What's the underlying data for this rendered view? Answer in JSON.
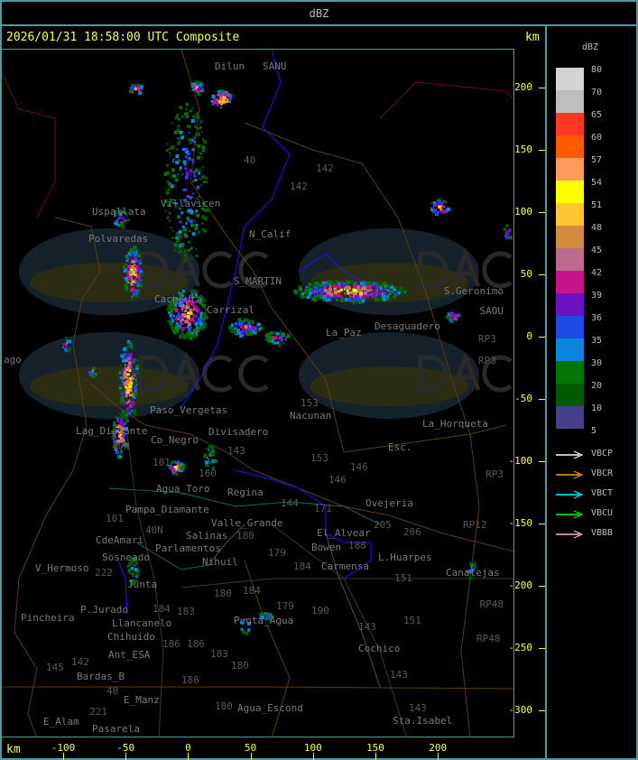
{
  "header": {
    "title": "dBZ"
  },
  "panel": {
    "title": "2026/01/31 18:58:00 UTC Composite",
    "unit_top": "km",
    "unit_bottom": "km"
  },
  "axes": {
    "y_ticks": [
      "200",
      "150",
      "100",
      "50",
      "0",
      "-50",
      "-100",
      "-150",
      "-200",
      "-250",
      "-300"
    ],
    "x_ticks": [
      "-100",
      "-50",
      "0",
      "50",
      "100",
      "150",
      "200"
    ]
  },
  "legend": {
    "unit": "dBZ",
    "levels": [
      {
        "label": "80",
        "color": "#d4d4d4"
      },
      {
        "label": "70",
        "color": "#bdbdbd"
      },
      {
        "label": "65",
        "color": "#ff3820"
      },
      {
        "label": "60",
        "color": "#ff5a00"
      },
      {
        "label": "57",
        "color": "#ff9a5a"
      },
      {
        "label": "54",
        "color": "#ffff00"
      },
      {
        "label": "51",
        "color": "#fcc42e"
      },
      {
        "label": "48",
        "color": "#d28a3c"
      },
      {
        "label": "45",
        "color": "#be6a8c"
      },
      {
        "label": "42",
        "color": "#c8128c"
      },
      {
        "label": "39",
        "color": "#6e10c4"
      },
      {
        "label": "36",
        "color": "#1e4ae6"
      },
      {
        "label": "35",
        "color": "#0a86dc"
      },
      {
        "label": "30",
        "color": "#007800"
      },
      {
        "label": "20",
        "color": "#005a00"
      },
      {
        "label": "10",
        "color": "#46408a"
      },
      {
        "label": "5",
        "color": ""
      }
    ],
    "radars": [
      {
        "label": "VBCP",
        "color": "#ffffff"
      },
      {
        "label": "VBCR",
        "color": "#ff9a00"
      },
      {
        "label": "VBCT",
        "color": "#00ffff"
      },
      {
        "label": "VBCU",
        "color": "#00ff00"
      },
      {
        "label": "VBBB",
        "color": "#ffb6c1"
      }
    ]
  },
  "map": {
    "watermark": {
      "logo": "DACC",
      "line1": "Dirección de Agricultura",
      "line2": "y Contingencias Climáticas",
      "url": "http://www.contingencias.mendoza.gov.ar"
    },
    "labels": [
      "Dilun",
      "SANU",
      "Villavicen",
      "Uspallata",
      "Polvaredas",
      "N_Calif",
      "S_MARTIN",
      "Carrizal",
      "Cacheuta",
      "40",
      "142",
      "142",
      "S.Geronimo",
      "SAOU",
      "Desaguadero",
      "La_Paz",
      "RP3",
      "RP3",
      "Nacunan",
      "153",
      "La_Horqueta",
      "Esc.",
      "146",
      "153",
      "146",
      "RP3",
      "Ovejeria",
      "205",
      "206",
      "RP12",
      "L.Huarpes",
      "188",
      "Canalejas",
      "151",
      "151",
      "RP48",
      "RP48",
      "Carmensa",
      "Bowen",
      "El_Alvear",
      "171",
      "143",
      "Cochico",
      "143",
      "143",
      "Sta.Isabel",
      "190",
      "179",
      "Punta_Agua",
      "184",
      "179",
      "180",
      "184",
      "Agua_Escond",
      "180",
      "180",
      "Paso_Vergetas",
      "Lag_Diamante",
      "Co_Negro",
      "Divisadero",
      "143",
      "160",
      "101",
      "40N",
      "Agua_Toro",
      "Regina",
      "Pampa_Diamante",
      "101",
      "40N",
      "Salinas",
      "180",
      "Valle_Grande",
      "144",
      "Nihuil",
      "CdeAmari",
      "Parlamentos",
      "Sosneado",
      "V_Hermoso",
      "222",
      "Junta",
      "P.Jurado",
      "Pincheira",
      "184",
      "183",
      "Llancanelo",
      "Chihuido",
      "186",
      "186",
      "Ant_ESA",
      "183",
      "145",
      "142",
      "Bardas_B",
      "186",
      "40",
      "E_Manz",
      "221",
      "E_Alam",
      "Pasarela",
      "ago"
    ]
  }
}
